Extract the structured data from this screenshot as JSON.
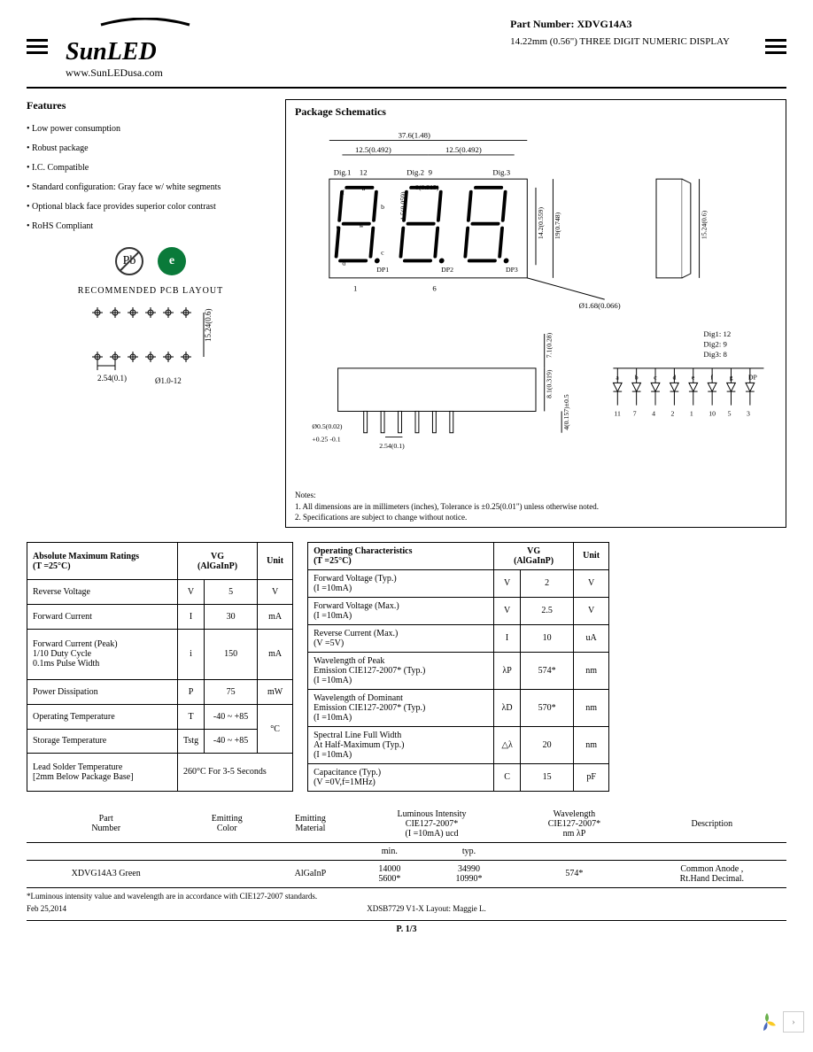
{
  "header": {
    "logo": "SunLED",
    "url": "www.SunLEDusa.com",
    "part_label": "Part Number:",
    "part_number": "XDVG14A3",
    "description": "14.22mm (0.56\") THREE DIGIT NUMERIC DISPLAY"
  },
  "features": {
    "title": "Features",
    "items": [
      "Low power consumption",
      "Robust package",
      "I.C. Compatible",
      "Standard configuration: Gray face w/ white segments",
      "Optional black face provides superior color contrast",
      "RoHS Compliant"
    ]
  },
  "icons": {
    "pb": "Pb",
    "e": "e"
  },
  "pcb": {
    "title": "RECOMMENDED  PCB  LAYOUT",
    "height_label": "15.24(0.6)",
    "pitch_label": "2.54(0.1)",
    "hole_label": "Ø1.0-12"
  },
  "schematics": {
    "title": "Package Schematics",
    "dims": {
      "w_total": "37.6(1.48)",
      "w_half1": "12.5(0.492)",
      "w_half2": "12.5(0.492)",
      "dig1": "Dig.1",
      "dig1_pin": "12",
      "dig2": "Dig.2",
      "dig2_pin": "9",
      "dig3": "Dig.3",
      "seg_a": "a",
      "seg_b": "b",
      "seg_c": "c",
      "seg_d": "d",
      "seg_e": "e",
      "seg_f": "f",
      "seg_g": "g",
      "dp1": "DP1",
      "dp2": "DP2",
      "dp3": "DP3",
      "seg_w": "8(0.315)",
      "seg_gap": "1.5(0.059)",
      "h_digit": "14.2(0.559)",
      "h_body": "19(0.748)",
      "pin1": "1",
      "pin6": "6",
      "hole_dia": "Ø1.68(0.066)",
      "side_h": "15.24(0.6)",
      "lead_h": "7.1(0.28)",
      "body_h": "8.1(0.319)",
      "lead_len": "4(0.157)±0.5",
      "lead_dia": "Ø0.5(0.02)",
      "lead_tol": "+0.25\n-0.1",
      "pitch": "2.54(0.1)",
      "circuit_dig1": "Dig1: 12",
      "circuit_dig2": "Dig2: 9",
      "circuit_dig3": "Dig3: 8",
      "circuit_segs": [
        "a",
        "b",
        "c",
        "d",
        "e",
        "f",
        "g",
        "DP"
      ],
      "circuit_pins": [
        "11",
        "7",
        "4",
        "2",
        "1",
        "10",
        "5",
        "3"
      ]
    },
    "notes_title": "Notes:",
    "note1": "1. All dimensions are in millimeters (inches), Tolerance is ±0.25(0.01\") unless otherwise noted.",
    "note2": "2. Specifications are subject to change without notice."
  },
  "abs_max": {
    "title": "Absolute Maximum Ratings\n(T  =25°C)",
    "col_vg": "VG\n(AlGaInP)",
    "col_unit": "Unit",
    "rows": [
      {
        "param": "Reverse Voltage",
        "sym": "V",
        "val": "5",
        "unit": "V"
      },
      {
        "param": "Forward Current",
        "sym": "I",
        "val": "30",
        "unit": "mA"
      },
      {
        "param": "Forward Current (Peak)\n1/10 Duty Cycle\n0.1ms Pulse Width",
        "sym": "i",
        "val": "150",
        "unit": "mA"
      },
      {
        "param": "Power Dissipation",
        "sym": "P",
        "val": "75",
        "unit": "mW"
      },
      {
        "param": "Operating Temperature",
        "sym": "T",
        "val": "-40 ~ +85",
        "unit_rowspan": "°C"
      },
      {
        "param": "Storage Temperature",
        "sym": "Tstg",
        "val": "-40 ~ +85"
      },
      {
        "param": "Lead Solder Temperature\n[2mm Below Package Base]",
        "colspan_val": "260°C For 3-5 Seconds"
      }
    ]
  },
  "op_char": {
    "title": "Operating Characteristics\n(T  =25°C)",
    "col_vg": "VG\n(AlGaInP)",
    "col_unit": "Unit",
    "rows": [
      {
        "param": "Forward Voltage (Typ.)\n(I  =10mA)",
        "sym": "V",
        "val": "2",
        "unit": "V"
      },
      {
        "param": "Forward Voltage (Max.)\n(I  =10mA)",
        "sym": "V",
        "val": "2.5",
        "unit": "V"
      },
      {
        "param": "Reverse Current (Max.)\n(V  =5V)",
        "sym": "I",
        "val": "10",
        "unit": "uA"
      },
      {
        "param": "Wavelength of Peak\nEmission CIE127-2007*        (Typ.)\n(I  =10mA)",
        "sym": "λP",
        "val": "574*",
        "unit": "nm"
      },
      {
        "param": "Wavelength of Dominant\nEmission CIE127-2007*        (Typ.)\n(I  =10mA)",
        "sym": "λD",
        "val": "570*",
        "unit": "nm"
      },
      {
        "param": "Spectral Line Full Width\nAt Half-Maximum (Typ.)\n(I  =10mA)",
        "sym": "△λ",
        "val": "20",
        "unit": "nm"
      },
      {
        "param": "Capacitance (Typ.)\n(V  =0V,f=1MHz)",
        "sym": "C",
        "val": "15",
        "unit": "pF"
      }
    ]
  },
  "summary": {
    "headers": [
      "Part\nNumber",
      "Emitting\nColor",
      "Emitting\nMaterial",
      "Luminous Intensity\nCIE127-2007*\n(I  =10mA) ucd",
      "Wavelength\nCIE127-2007*\nnm λP",
      "Description"
    ],
    "sub_min": "min.",
    "sub_typ": "typ.",
    "row": {
      "part": "XDVG14A3",
      "color": "Green",
      "material": "AlGaInP",
      "min1": "14000",
      "typ1": "34990",
      "min2": "5600*",
      "typ2": "10990*",
      "wl": "574*",
      "desc": "Common Anode ,\nRt.Hand Decimal."
    },
    "footnote": "*Luminous intensity value and wavelength are in accordance with CIE127-2007 standards."
  },
  "footer": {
    "date": "Feb 25,2014",
    "doc": "XDSB7729   V1-X   Layout: Maggie L.",
    "page": "P. 1/3"
  },
  "colors": {
    "green": "#0a7a3a",
    "nav1": "#6ab04c",
    "nav2": "#f9ca24",
    "nav3": "#4a69bd",
    "nav4": "#78e08f"
  }
}
